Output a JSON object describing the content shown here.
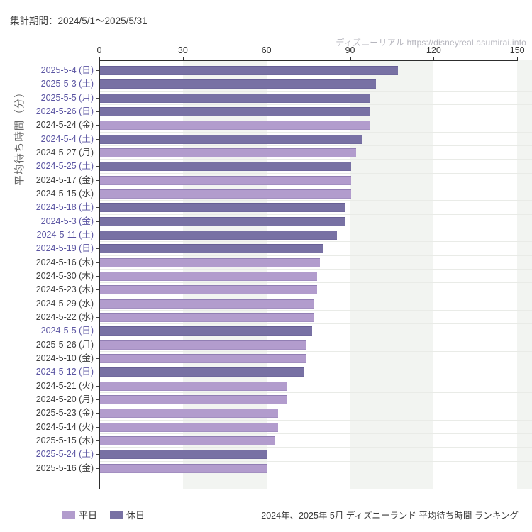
{
  "header": {
    "title": "集計期間：2024/5/1～2025/5/31"
  },
  "watermark": {
    "text": "ディズニーリアル https://disneyreal.asumirai.info"
  },
  "footer": {
    "caption": "2024年、2025年 5月 ディズニーランド 平均待ち時間 ランキング"
  },
  "chart_data": {
    "type": "bar",
    "orientation": "horizontal",
    "ylabel": "平均待ち時間（分）",
    "xlabel": "",
    "xlim": [
      0,
      150
    ],
    "xticks": [
      0,
      30,
      60,
      90,
      120,
      150
    ],
    "grid": "vertical-bands-and-row-lines",
    "legend_position": "bottom-left",
    "legend": [
      {
        "label": "平日",
        "color": "#b29ccd"
      },
      {
        "label": "休日",
        "color": "#7871a4"
      }
    ],
    "colors": {
      "weekday": "#b29ccd",
      "holiday": "#7871a4"
    },
    "label_colors": {
      "weekday": "#3d3d3d",
      "holiday": "#5a54a2"
    },
    "bars": [
      {
        "label": "2025-5-4 (日)",
        "value": 107,
        "type": "holiday"
      },
      {
        "label": "2025-5-3 (土)",
        "value": 99,
        "type": "holiday"
      },
      {
        "label": "2025-5-5 (月)",
        "value": 97,
        "type": "holiday"
      },
      {
        "label": "2024-5-26 (日)",
        "value": 97,
        "type": "holiday"
      },
      {
        "label": "2024-5-24 (金)",
        "value": 97,
        "type": "weekday"
      },
      {
        "label": "2024-5-4 (土)",
        "value": 94,
        "type": "holiday"
      },
      {
        "label": "2024-5-27 (月)",
        "value": 92,
        "type": "weekday"
      },
      {
        "label": "2024-5-25 (土)",
        "value": 90,
        "type": "holiday"
      },
      {
        "label": "2024-5-17 (金)",
        "value": 90,
        "type": "weekday"
      },
      {
        "label": "2024-5-15 (水)",
        "value": 90,
        "type": "weekday"
      },
      {
        "label": "2024-5-18 (土)",
        "value": 88,
        "type": "holiday"
      },
      {
        "label": "2024-5-3 (金)",
        "value": 88,
        "type": "holiday"
      },
      {
        "label": "2024-5-11 (土)",
        "value": 85,
        "type": "holiday"
      },
      {
        "label": "2024-5-19 (日)",
        "value": 80,
        "type": "holiday"
      },
      {
        "label": "2024-5-16 (木)",
        "value": 79,
        "type": "weekday"
      },
      {
        "label": "2024-5-30 (木)",
        "value": 78,
        "type": "weekday"
      },
      {
        "label": "2024-5-23 (木)",
        "value": 78,
        "type": "weekday"
      },
      {
        "label": "2024-5-29 (水)",
        "value": 77,
        "type": "weekday"
      },
      {
        "label": "2024-5-22 (水)",
        "value": 77,
        "type": "weekday"
      },
      {
        "label": "2024-5-5 (日)",
        "value": 76,
        "type": "holiday"
      },
      {
        "label": "2025-5-26 (月)",
        "value": 74,
        "type": "weekday"
      },
      {
        "label": "2024-5-10 (金)",
        "value": 74,
        "type": "weekday"
      },
      {
        "label": "2024-5-12 (日)",
        "value": 73,
        "type": "holiday"
      },
      {
        "label": "2024-5-21 (火)",
        "value": 67,
        "type": "weekday"
      },
      {
        "label": "2024-5-20 (月)",
        "value": 67,
        "type": "weekday"
      },
      {
        "label": "2025-5-23 (金)",
        "value": 64,
        "type": "weekday"
      },
      {
        "label": "2024-5-14 (火)",
        "value": 64,
        "type": "weekday"
      },
      {
        "label": "2025-5-15 (木)",
        "value": 63,
        "type": "weekday"
      },
      {
        "label": "2025-5-24 (土)",
        "value": 60,
        "type": "holiday"
      },
      {
        "label": "2025-5-16 (金)",
        "value": 60,
        "type": "weekday"
      }
    ]
  }
}
